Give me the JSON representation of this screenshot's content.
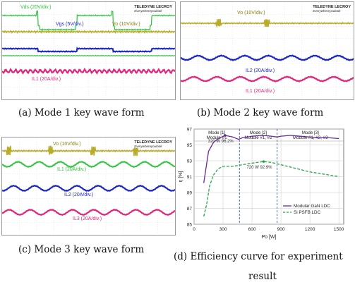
{
  "panels": {
    "a": {
      "caption": "(a)  Mode  1  key  wave  form",
      "logo": "TELEDYNE LECROY",
      "logo_sub": "Everywhereyoulook",
      "labels": [
        "Vds (20V/div.)",
        "Vgs (5V/div.)",
        "Vo (10V/div.)",
        "IL1 (20A/div.)"
      ]
    },
    "b": {
      "caption": "(b)  Mode  2  key  wave  form",
      "logo": "TELEDYNE LECROY",
      "logo_sub": "Everywhereyoulook",
      "labels": [
        "Vo (10V/div.)",
        "IL2 (20A/div.)",
        "IL1 (20A/div.)"
      ]
    },
    "c": {
      "caption": "(c)  Mode  3  key  wave  form",
      "logo": "TELEDYNE LECROY",
      "logo_sub": "Everywhereyoulook",
      "labels": [
        "Vo (10V/div.)",
        "IL1 (20A/div.)",
        "IL2 (20A/div.)",
        "IL3 (20A/div.)"
      ]
    },
    "d": {
      "caption_line1": "(d)  Efficiency  curve  for  experiment",
      "caption_line2": "result"
    }
  },
  "colors": {
    "trace_yellow": "#b8ad2a",
    "trace_green": "#2ec53a",
    "trace_blue": "#1c27c6",
    "trace_pink": "#e0287a",
    "gan_line": "#6a2a9a",
    "si_line": "#2aa34a",
    "mode_divider": "#3a5fa8"
  },
  "chart_data": {
    "type": "line",
    "title": "",
    "xlabel": "Po [W]",
    "ylabel": "η [%]",
    "xlim": [
      0,
      1550
    ],
    "ylim": [
      85,
      97
    ],
    "xticks": [
      0,
      300,
      600,
      900,
      1200,
      1500
    ],
    "yticks": [
      85,
      87,
      89,
      91,
      93,
      95,
      97
    ],
    "grid": true,
    "legend_position": "bottom-right",
    "mode_regions": [
      {
        "label": "Mode [1]",
        "sublabel": "Module #1",
        "x_start": 0,
        "x_end": 470
      },
      {
        "label": "Mode [2]",
        "sublabel": "Module #1, #2",
        "x_start": 470,
        "x_end": 860
      },
      {
        "label": "Mode [3]",
        "sublabel": "Module #1, #2, #3",
        "x_start": 860,
        "x_end": 1550
      }
    ],
    "series": [
      {
        "name": "Modular GaN LDC",
        "style": "solid",
        "x": [
          100,
          150,
          200,
          250,
          320,
          400,
          460,
          500,
          600,
          700,
          800,
          860,
          900,
          1000,
          1100,
          1200,
          1300,
          1400,
          1500
        ],
        "y": [
          90.2,
          94.2,
          95.3,
          95.8,
          96.2,
          96.0,
          95.7,
          95.9,
          96.1,
          96.2,
          96.1,
          96.0,
          96.1,
          96.2,
          96.1,
          96.0,
          95.9,
          95.9,
          95.8
        ]
      },
      {
        "name": "Si PSFB LDC",
        "style": "dashed",
        "x": [
          100,
          130,
          160,
          200,
          250,
          300,
          400,
          500,
          600,
          720,
          800,
          900,
          1000,
          1100,
          1200,
          1300,
          1400,
          1500
        ],
        "y": [
          86.0,
          87.5,
          89.8,
          91.2,
          92.0,
          92.3,
          92.3,
          92.5,
          92.7,
          92.9,
          92.8,
          92.5,
          92.2,
          91.9,
          91.6,
          91.4,
          91.2,
          91.0
        ]
      }
    ],
    "annotations": [
      {
        "text": "320 W 96.2%",
        "x": 320,
        "y": 96.2,
        "series": "Modular GaN LDC"
      },
      {
        "text": "720 W 92.9%",
        "x": 720,
        "y": 92.9,
        "series": "Si PSFB LDC"
      }
    ]
  }
}
